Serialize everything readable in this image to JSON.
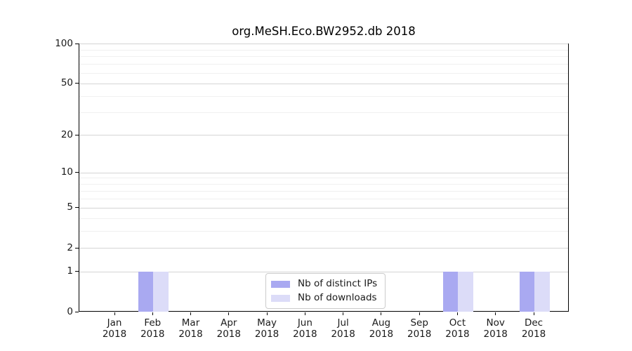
{
  "title": "org.MeSH.Eco.BW2952.db 2018",
  "legend": {
    "items": [
      {
        "label": "Nb of distinct IPs",
        "color": "#a9a9f1"
      },
      {
        "label": "Nb of downloads",
        "color": "#dcdcf8"
      }
    ]
  },
  "colors": {
    "bar_distinct_ips": "#a9a9f1",
    "bar_downloads": "#dcdcf8",
    "grid_major": "#d4d4d4",
    "grid_minor": "#f0f0f0",
    "axis": "#000000",
    "background": "#ffffff"
  },
  "chart_data": {
    "type": "bar",
    "title": "org.MeSH.Eco.BW2952.db 2018",
    "categories": [
      "Jan",
      "Feb",
      "Mar",
      "Apr",
      "May",
      "Jun",
      "Jul",
      "Aug",
      "Sep",
      "Oct",
      "Nov",
      "Dec"
    ],
    "x_tick_year": "2018",
    "series": [
      {
        "name": "Nb of distinct IPs",
        "color": "#a9a9f1",
        "values": [
          0,
          1,
          0,
          0,
          0,
          0,
          0,
          0,
          0,
          1,
          0,
          1
        ]
      },
      {
        "name": "Nb of downloads",
        "color": "#dcdcf8",
        "values": [
          0,
          1,
          0,
          0,
          0,
          0,
          0,
          0,
          0,
          1,
          0,
          1
        ]
      }
    ],
    "xlabel": "",
    "ylabel": "",
    "yscale": "log1p",
    "ylim": [
      0,
      100
    ],
    "y_major_ticks": [
      0,
      1,
      2,
      5,
      10,
      20,
      50,
      100
    ],
    "y_minor_ticks": [
      3,
      4,
      6,
      7,
      8,
      9,
      30,
      40,
      60,
      70,
      80,
      90
    ],
    "grid": "horizontal",
    "legend_position": "lower center"
  }
}
